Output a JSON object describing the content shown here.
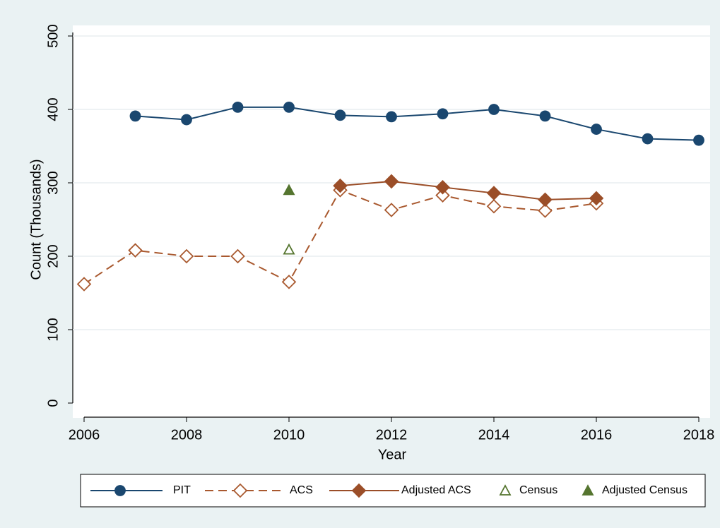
{
  "chart_data": {
    "type": "line",
    "x_label": "Year",
    "y_label": "Count (Thousands)",
    "xlim": [
      2006,
      2018
    ],
    "xticks": [
      2006,
      2008,
      2010,
      2012,
      2014,
      2016,
      2018
    ],
    "ylim": [
      0,
      500
    ],
    "yticks": [
      0,
      100,
      200,
      300,
      400,
      500
    ],
    "grid": true,
    "legend": "bottom",
    "series": [
      {
        "name": "PIT",
        "color": "#1a476f",
        "marker": "circle",
        "filled": true,
        "line": "solid",
        "x": [
          2007,
          2008,
          2009,
          2010,
          2011,
          2012,
          2013,
          2014,
          2015,
          2016,
          2017,
          2018
        ],
        "values": [
          391,
          386,
          403,
          403,
          392,
          390,
          394,
          400,
          391,
          373,
          360,
          358
        ]
      },
      {
        "name": "ACS",
        "color": "#a9592f",
        "marker": "diamond",
        "filled": false,
        "line": "dashed",
        "x": [
          2006,
          2007,
          2008,
          2009,
          2010,
          2011,
          2012,
          2013,
          2014,
          2015,
          2016
        ],
        "values": [
          162,
          208,
          200,
          200,
          165,
          290,
          263,
          283,
          268,
          262,
          272
        ]
      },
      {
        "name": "Adjusted ACS",
        "color": "#9b4e28",
        "marker": "diamond",
        "filled": true,
        "line": "solid",
        "x": [
          2011,
          2012,
          2013,
          2014,
          2015,
          2016
        ],
        "values": [
          296,
          302,
          294,
          286,
          277,
          279
        ]
      },
      {
        "name": "Census",
        "color": "#55752f",
        "marker": "triangle",
        "filled": false,
        "line": "none",
        "x": [
          2010
        ],
        "values": [
          209
        ]
      },
      {
        "name": "Adjusted Census",
        "color": "#55752f",
        "marker": "triangle",
        "filled": true,
        "line": "none",
        "x": [
          2010
        ],
        "values": [
          290
        ]
      }
    ]
  }
}
